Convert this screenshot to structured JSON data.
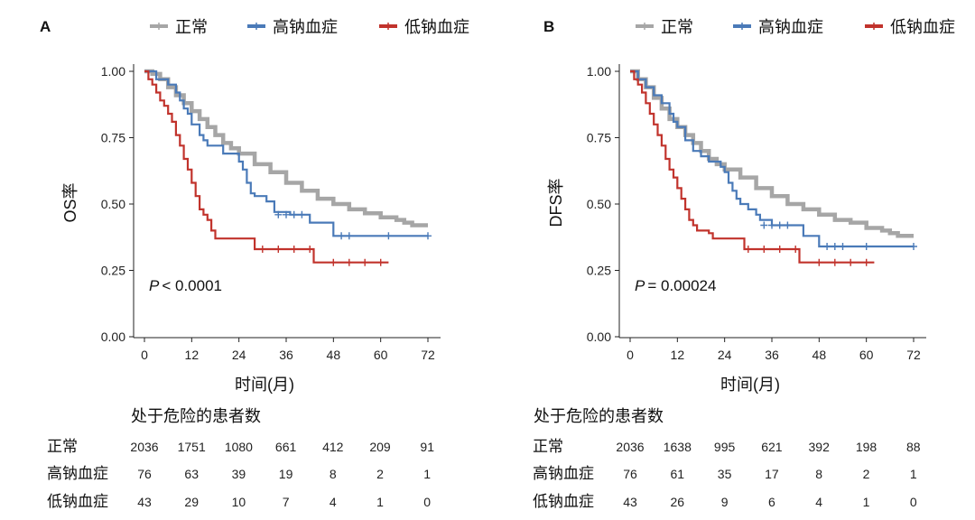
{
  "legend_entries": [
    {
      "label": "正常",
      "color": "#a6a6a6"
    },
    {
      "label": "高钠血症",
      "color": "#4a7ab8"
    },
    {
      "label": "低钠血症",
      "color": "#c1332c"
    }
  ],
  "risk_table_title": "处于危险的患者数",
  "chart_data": [
    {
      "type": "line",
      "panel_label": "A",
      "title": "",
      "xlabel": "时间(月)",
      "ylabel": "OS率",
      "p_label": "P",
      "p_text": "< 0.0001",
      "xticks": [
        0,
        12,
        24,
        36,
        48,
        60,
        72
      ],
      "yticks": [
        "0.00",
        "0.25",
        "0.50",
        "0.75",
        "1.00"
      ],
      "xlim": [
        0,
        72
      ],
      "ylim": [
        0,
        1
      ],
      "series": [
        {
          "name": "正常",
          "color": "#a6a6a6",
          "x": [
            0,
            2,
            4,
            6,
            8,
            10,
            12,
            14,
            16,
            18,
            20,
            22,
            24,
            28,
            32,
            36,
            40,
            44,
            48,
            52,
            56,
            60,
            64,
            66,
            68,
            72
          ],
          "y": [
            1.0,
            0.99,
            0.97,
            0.94,
            0.91,
            0.88,
            0.85,
            0.82,
            0.79,
            0.76,
            0.73,
            0.71,
            0.69,
            0.65,
            0.62,
            0.58,
            0.55,
            0.52,
            0.5,
            0.48,
            0.465,
            0.45,
            0.44,
            0.43,
            0.42,
            0.42
          ],
          "censor_x": [],
          "censor_y": []
        },
        {
          "name": "高钠血症",
          "color": "#4a7ab8",
          "x": [
            0,
            3,
            6,
            8,
            9,
            10,
            11,
            12,
            14,
            15,
            16,
            18,
            20,
            22,
            24,
            25,
            26,
            27,
            28,
            31,
            33,
            37,
            40,
            42,
            46,
            48,
            72
          ],
          "y": [
            1.0,
            0.97,
            0.95,
            0.92,
            0.89,
            0.86,
            0.84,
            0.8,
            0.76,
            0.74,
            0.72,
            0.72,
            0.69,
            0.69,
            0.66,
            0.63,
            0.58,
            0.54,
            0.53,
            0.51,
            0.47,
            0.46,
            0.46,
            0.43,
            0.43,
            0.38,
            0.38
          ],
          "censor_x": [
            34,
            36,
            38,
            40,
            50,
            52,
            62,
            72
          ],
          "censor_y": [
            0.46,
            0.46,
            0.46,
            0.46,
            0.38,
            0.38,
            0.38,
            0.38
          ]
        },
        {
          "name": "低钠血症",
          "color": "#c1332c",
          "x": [
            0,
            1,
            2,
            3,
            4,
            5,
            6,
            7,
            8,
            9,
            10,
            11,
            12,
            13,
            14,
            15,
            16,
            17,
            18,
            19,
            20,
            28,
            43,
            62
          ],
          "y": [
            1.0,
            0.97,
            0.95,
            0.92,
            0.89,
            0.87,
            0.84,
            0.81,
            0.76,
            0.72,
            0.67,
            0.63,
            0.58,
            0.53,
            0.48,
            0.46,
            0.44,
            0.4,
            0.37,
            0.37,
            0.37,
            0.33,
            0.28,
            0.28
          ],
          "censor_x": [
            30,
            34,
            38,
            42,
            48,
            52,
            56,
            60
          ],
          "censor_y": [
            0.33,
            0.33,
            0.33,
            0.33,
            0.28,
            0.28,
            0.28,
            0.28
          ]
        }
      ],
      "risk_table": {
        "times": [
          0,
          12,
          24,
          36,
          48,
          60,
          72
        ],
        "rows": [
          {
            "label": "正常",
            "values": [
              "2036",
              "1751",
              "1080",
              "661",
              "412",
              "209",
              "91"
            ]
          },
          {
            "label": "高钠血症",
            "values": [
              "76",
              "63",
              "39",
              "19",
              "8",
              "2",
              "1"
            ]
          },
          {
            "label": "低钠血症",
            "values": [
              "43",
              "29",
              "10",
              "7",
              "4",
              "1",
              "0"
            ]
          }
        ]
      }
    },
    {
      "type": "line",
      "panel_label": "B",
      "title": "",
      "xlabel": "时间(月)",
      "ylabel": "DFS率",
      "p_label": "P",
      "p_text": "= 0.00024",
      "xticks": [
        0,
        12,
        24,
        36,
        48,
        60,
        72
      ],
      "yticks": [
        "0.00",
        "0.25",
        "0.50",
        "0.75",
        "1.00"
      ],
      "xlim": [
        0,
        72
      ],
      "ylim": [
        0,
        1
      ],
      "series": [
        {
          "name": "正常",
          "color": "#a6a6a6",
          "x": [
            0,
            2,
            4,
            6,
            8,
            10,
            12,
            14,
            16,
            18,
            20,
            22,
            24,
            28,
            32,
            36,
            40,
            44,
            48,
            52,
            56,
            60,
            64,
            66,
            68,
            72
          ],
          "y": [
            1.0,
            0.97,
            0.94,
            0.9,
            0.86,
            0.82,
            0.79,
            0.76,
            0.73,
            0.7,
            0.67,
            0.65,
            0.63,
            0.6,
            0.56,
            0.53,
            0.5,
            0.48,
            0.46,
            0.44,
            0.43,
            0.41,
            0.4,
            0.39,
            0.38,
            0.38
          ],
          "censor_x": [],
          "censor_y": []
        },
        {
          "name": "高钠血症",
          "color": "#4a7ab8",
          "x": [
            0,
            2,
            4,
            6,
            8,
            10,
            11,
            12,
            14,
            16,
            18,
            20,
            22,
            23,
            24,
            25,
            26,
            27,
            28,
            30,
            32,
            33,
            36,
            38,
            40,
            44,
            46,
            48,
            72
          ],
          "y": [
            1.0,
            0.97,
            0.94,
            0.91,
            0.88,
            0.84,
            0.81,
            0.79,
            0.74,
            0.7,
            0.68,
            0.66,
            0.66,
            0.64,
            0.62,
            0.58,
            0.55,
            0.52,
            0.5,
            0.48,
            0.46,
            0.44,
            0.42,
            0.42,
            0.42,
            0.38,
            0.38,
            0.34,
            0.34
          ],
          "censor_x": [
            34,
            36,
            38,
            40,
            50,
            52,
            54,
            60,
            72
          ],
          "censor_y": [
            0.42,
            0.42,
            0.42,
            0.42,
            0.34,
            0.34,
            0.34,
            0.34,
            0.34
          ]
        },
        {
          "name": "低钠血症",
          "color": "#c1332c",
          "x": [
            0,
            1,
            2,
            3,
            4,
            5,
            6,
            7,
            8,
            9,
            10,
            11,
            12,
            13,
            14,
            15,
            16,
            17,
            18,
            20,
            21,
            29,
            43,
            62
          ],
          "y": [
            1.0,
            0.97,
            0.95,
            0.92,
            0.88,
            0.84,
            0.8,
            0.76,
            0.72,
            0.67,
            0.63,
            0.6,
            0.56,
            0.52,
            0.48,
            0.44,
            0.42,
            0.4,
            0.4,
            0.39,
            0.37,
            0.33,
            0.28,
            0.28
          ],
          "censor_x": [
            30,
            34,
            38,
            42,
            48,
            52,
            56,
            60
          ],
          "censor_y": [
            0.33,
            0.33,
            0.33,
            0.33,
            0.28,
            0.28,
            0.28,
            0.28
          ]
        }
      ],
      "risk_table": {
        "times": [
          0,
          12,
          24,
          36,
          48,
          60,
          72
        ],
        "rows": [
          {
            "label": "正常",
            "values": [
              "2036",
              "1638",
              "995",
              "621",
              "392",
              "198",
              "88"
            ]
          },
          {
            "label": "高钠血症",
            "values": [
              "76",
              "61",
              "35",
              "17",
              "8",
              "2",
              "1"
            ]
          },
          {
            "label": "低钠血症",
            "values": [
              "43",
              "26",
              "9",
              "6",
              "4",
              "1",
              "0"
            ]
          }
        ]
      }
    }
  ]
}
